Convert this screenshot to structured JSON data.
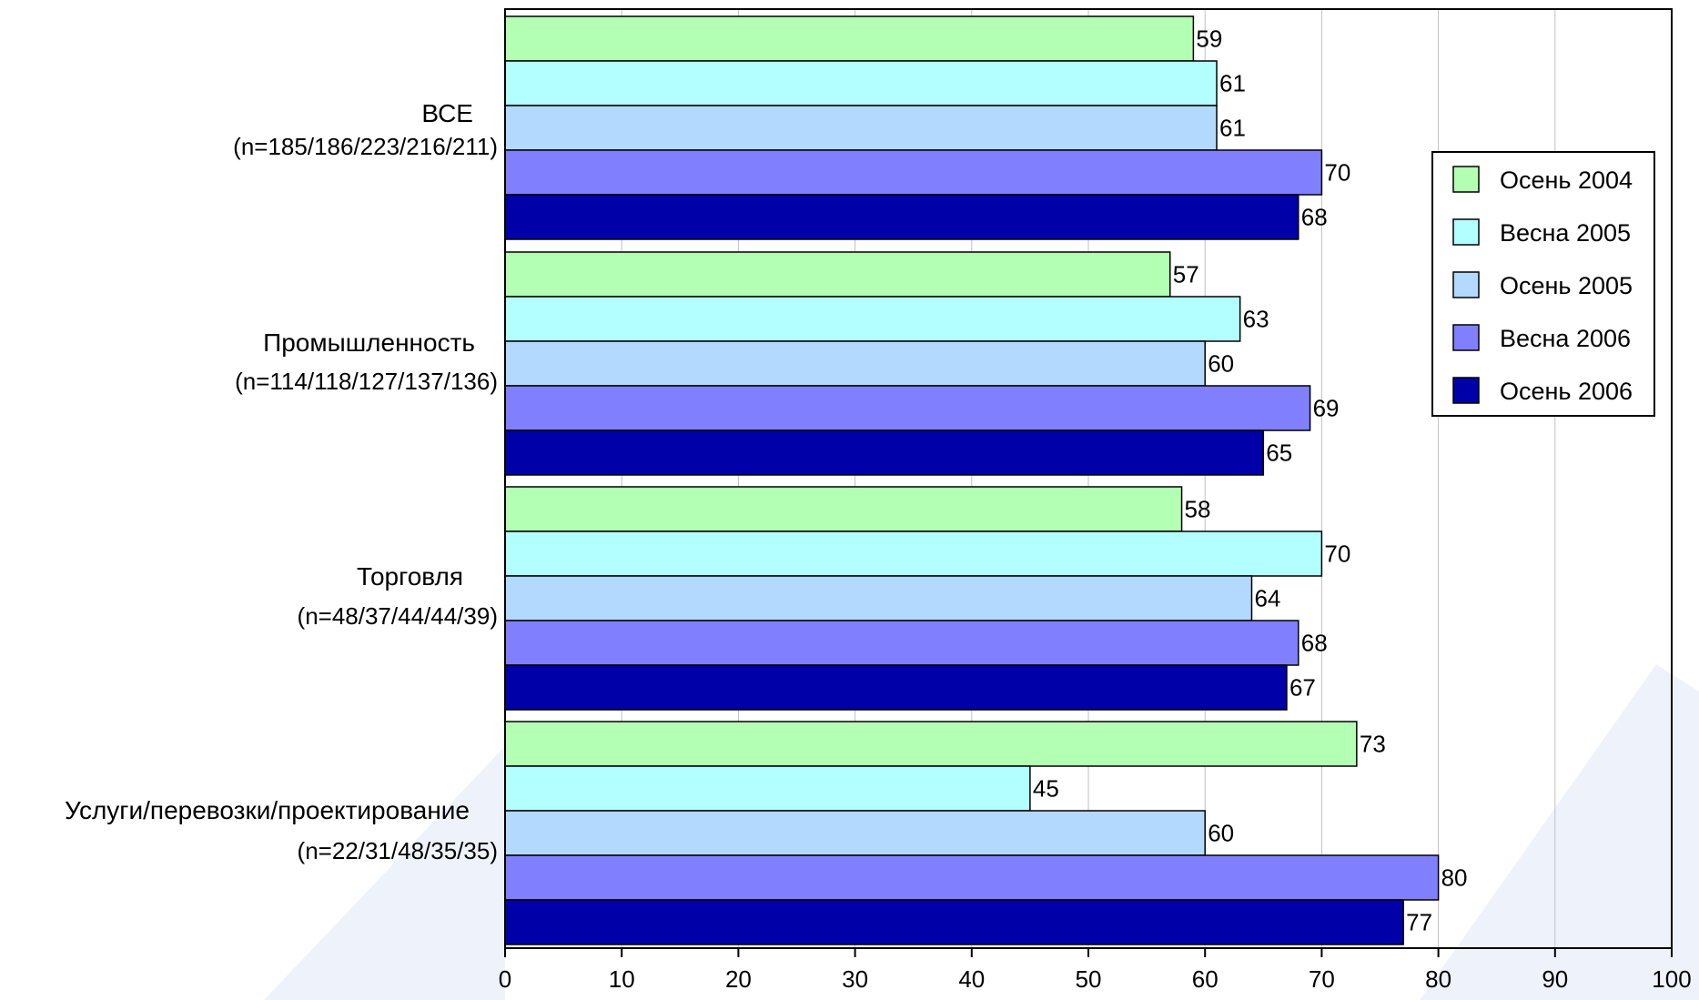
{
  "chart_data": {
    "type": "bar",
    "orientation": "horizontal",
    "categories": [
      {
        "line1": "ВСЕ",
        "line2": "(n=185/186/223/216/211)"
      },
      {
        "line1": "Промышленность",
        "line2": "(n=114/118/127/137/136)"
      },
      {
        "line1": "Торговля",
        "line2": "(n=48/37/44/44/39)"
      },
      {
        "line1": "Услуги/перевозки/проектирование",
        "line2": "(n=22/31/48/35/35)"
      }
    ],
    "series": [
      {
        "name": "Осень 2004",
        "color": "#B3FFB3",
        "values": [
          59,
          57,
          58,
          73
        ]
      },
      {
        "name": "Весна 2005",
        "color": "#B3FFFF",
        "values": [
          61,
          63,
          70,
          45
        ]
      },
      {
        "name": "Осень 2005",
        "color": "#B3D9FF",
        "values": [
          61,
          60,
          64,
          60
        ]
      },
      {
        "name": "Весна 2006",
        "color": "#8080FF",
        "values": [
          70,
          69,
          68,
          80
        ]
      },
      {
        "name": "Осень 2006",
        "color": "#0000A8",
        "values": [
          68,
          65,
          67,
          77
        ]
      }
    ],
    "xlim": [
      0,
      100
    ],
    "xticks": [
      0,
      10,
      20,
      30,
      40,
      50,
      60,
      70,
      80,
      90,
      100
    ],
    "grid": "vertical",
    "legend_position": "right",
    "title": "",
    "xlabel": "",
    "ylabel": ""
  },
  "colors": {
    "background_shape": "#EEF3FB",
    "gridline": "#C0C0C0",
    "bar_outline": "#000000",
    "text": "#000000"
  }
}
